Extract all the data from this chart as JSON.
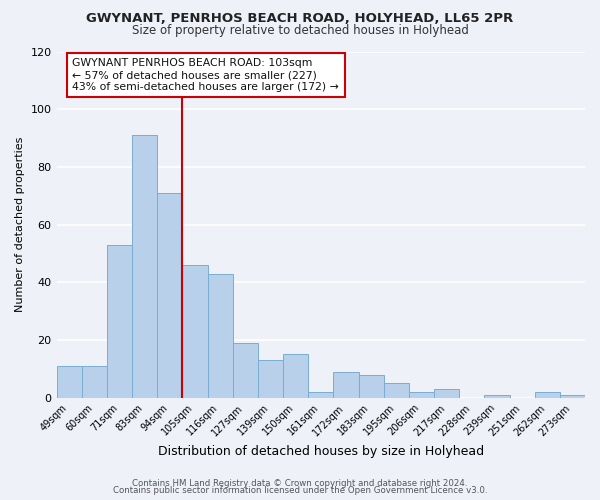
{
  "title": "GWYNANT, PENRHOS BEACH ROAD, HOLYHEAD, LL65 2PR",
  "subtitle": "Size of property relative to detached houses in Holyhead",
  "xlabel": "Distribution of detached houses by size in Holyhead",
  "ylabel": "Number of detached properties",
  "categories": [
    "49sqm",
    "60sqm",
    "71sqm",
    "83sqm",
    "94sqm",
    "105sqm",
    "116sqm",
    "127sqm",
    "139sqm",
    "150sqm",
    "161sqm",
    "172sqm",
    "183sqm",
    "195sqm",
    "206sqm",
    "217sqm",
    "228sqm",
    "239sqm",
    "251sqm",
    "262sqm",
    "273sqm"
  ],
  "values": [
    11,
    11,
    53,
    91,
    71,
    46,
    43,
    19,
    13,
    15,
    2,
    9,
    8,
    5,
    2,
    3,
    0,
    1,
    0,
    2,
    1
  ],
  "bar_color": "#b8d0ea",
  "bar_edge_color": "#7aadd4",
  "vline_x_index": 5,
  "vline_color": "#cc0000",
  "ylim": [
    0,
    120
  ],
  "annotation_title": "GWYNANT PENRHOS BEACH ROAD: 103sqm",
  "annotation_line1": "← 57% of detached houses are smaller (227)",
  "annotation_line2": "43% of semi-detached houses are larger (172) →",
  "box_edge_color": "#cc0000",
  "footer1": "Contains HM Land Registry data © Crown copyright and database right 2024.",
  "footer2": "Contains public sector information licensed under the Open Government Licence v3.0.",
  "background_color": "#eef1f8",
  "grid_color": "#ffffff",
  "title_fontsize": 9.5,
  "subtitle_fontsize": 8.5,
  "ylabel_fontsize": 8,
  "xlabel_fontsize": 9
}
